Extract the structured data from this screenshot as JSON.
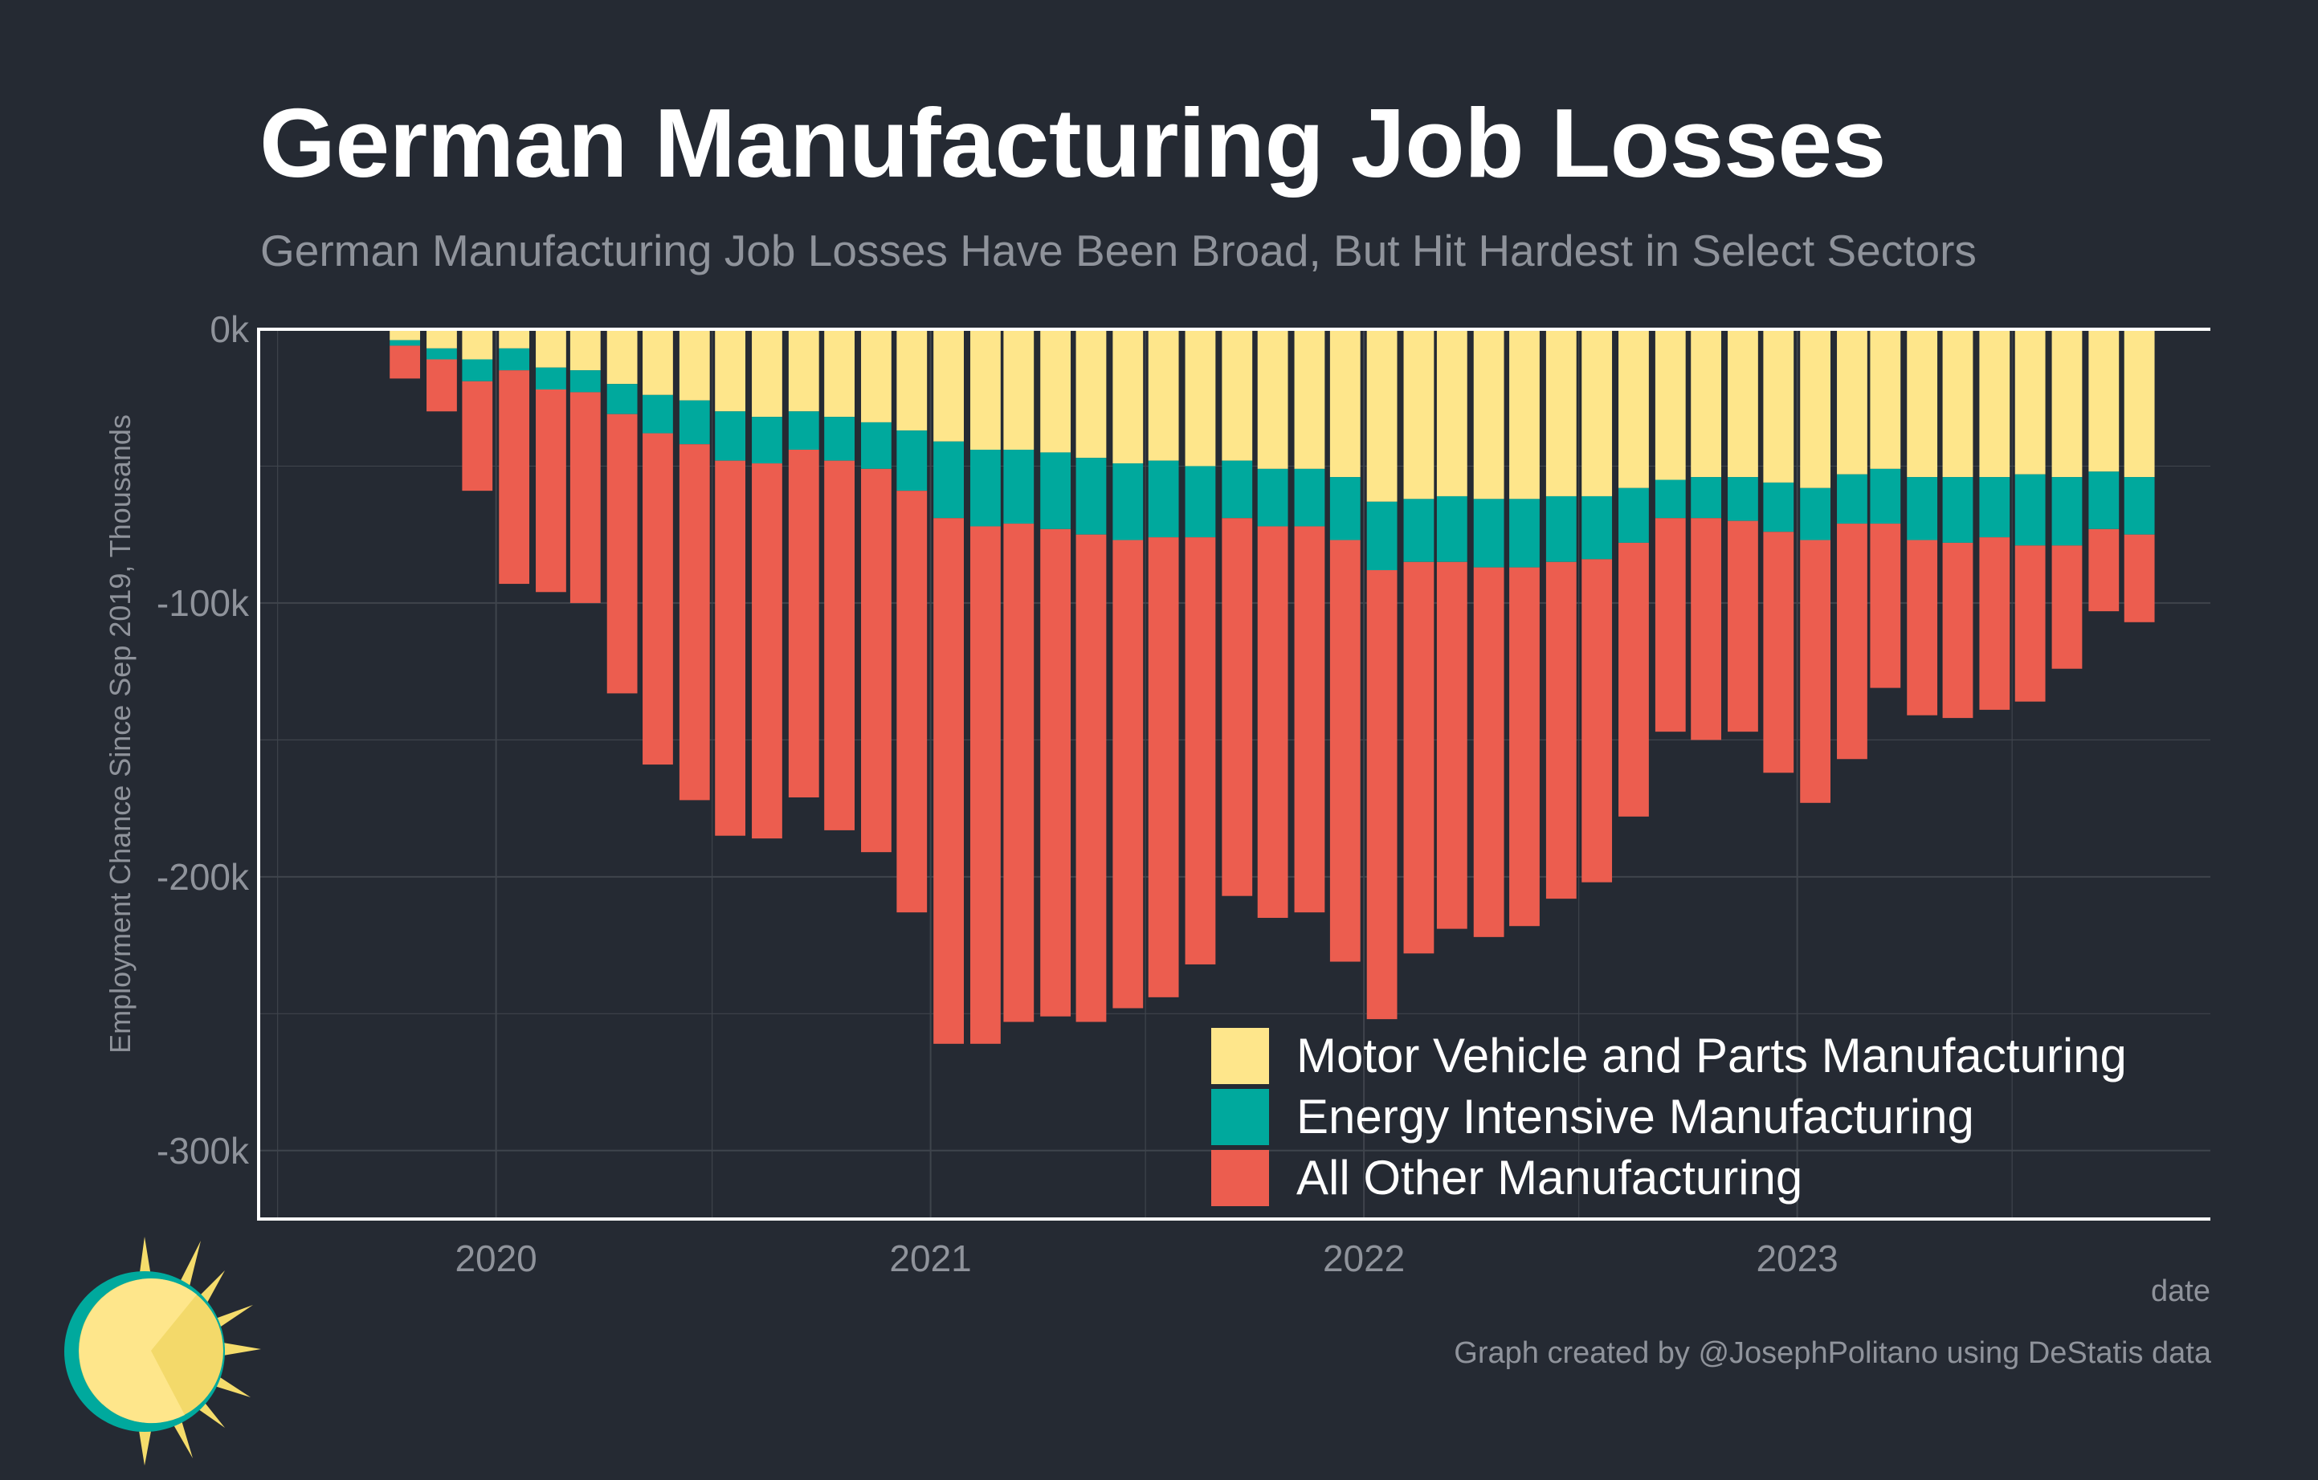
{
  "title": "German Manufacturing Job Losses",
  "subtitle": "German Manufacturing Job Losses Have Been Broad, But Hit Hardest in Select Sectors",
  "caption": "Graph created by @JosephPolitano using DeStatis data",
  "logo_icon": "sun-logo-icon",
  "colors": {
    "background": "#252a33",
    "motor": "#fee68b",
    "energy": "#00a99d",
    "other": "#ec5d4f",
    "grid": "#3f444c",
    "text_muted": "#8f939b"
  },
  "chart_data": {
    "type": "bar",
    "stacked": true,
    "title": "German Manufacturing Job Losses",
    "subtitle": "German Manufacturing Job Losses Have Been Broad, But Hit Hardest in Select Sectors",
    "xlabel": "date",
    "ylabel": "Employment Chance Since Sep 2019, Thousands",
    "ylim": [
      -325,
      0
    ],
    "yticks": [
      0,
      -100,
      -200,
      -300
    ],
    "ytick_labels": [
      "0k",
      "-100k",
      "-200k",
      "-300k"
    ],
    "xlim": [
      "2019-06-15",
      "2023-12-15"
    ],
    "xticks": [
      "2020-01",
      "2021-01",
      "2022-01",
      "2023-01"
    ],
    "xtick_labels": [
      "2020",
      "2021",
      "2022",
      "2023"
    ],
    "grid": true,
    "legend_position": "bottom-right",
    "months": [
      "2019-10",
      "2019-11",
      "2019-12",
      "2020-01",
      "2020-02",
      "2020-03",
      "2020-04",
      "2020-05",
      "2020-06",
      "2020-07",
      "2020-08",
      "2020-09",
      "2020-10",
      "2020-11",
      "2020-12",
      "2021-01",
      "2021-02",
      "2021-03",
      "2021-04",
      "2021-05",
      "2021-06",
      "2021-07",
      "2021-08",
      "2021-09",
      "2021-10",
      "2021-11",
      "2021-12",
      "2022-01",
      "2022-02",
      "2022-03",
      "2022-04",
      "2022-05",
      "2022-06",
      "2022-07",
      "2022-08",
      "2022-09",
      "2022-10",
      "2022-11",
      "2022-12",
      "2023-01",
      "2023-02",
      "2023-03",
      "2023-04",
      "2023-05",
      "2023-06",
      "2023-07",
      "2023-08",
      "2023-09",
      "2023-10"
    ],
    "series": [
      {
        "name": "Motor Vehicle and Parts Manufacturing",
        "color": "#fee68b",
        "values": [
          -4,
          -7,
          -11,
          -7,
          -14,
          -15,
          -20,
          -24,
          -26,
          -30,
          -32,
          -30,
          -32,
          -34,
          -37,
          -41,
          -44,
          -44,
          -45,
          -47,
          -49,
          -48,
          -50,
          -48,
          -51,
          -51,
          -54,
          -63,
          -62,
          -61,
          -62,
          -62,
          -61,
          -61,
          -58,
          -55,
          -54,
          -54,
          -56,
          -58,
          -53,
          -51,
          -54,
          -54,
          -54,
          -53,
          -54,
          -52,
          -54
        ]
      },
      {
        "name": "Energy Intensive Manufacturing",
        "color": "#00a99d",
        "values": [
          -2,
          -4,
          -8,
          -8,
          -8,
          -8,
          -11,
          -14,
          -16,
          -18,
          -17,
          -14,
          -16,
          -17,
          -22,
          -28,
          -28,
          -27,
          -28,
          -28,
          -28,
          -28,
          -26,
          -21,
          -21,
          -21,
          -23,
          -25,
          -23,
          -24,
          -25,
          -25,
          -24,
          -23,
          -20,
          -14,
          -15,
          -16,
          -18,
          -19,
          -18,
          -20,
          -23,
          -24,
          -22,
          -26,
          -25,
          -21,
          -21
        ]
      },
      {
        "name": "All Other Manufacturing",
        "color": "#ec5d4f",
        "values": [
          -12,
          -19,
          -40,
          -78,
          -74,
          -77,
          -102,
          -121,
          -130,
          -137,
          -137,
          -127,
          -135,
          -140,
          -154,
          -192,
          -189,
          -182,
          -178,
          -178,
          -171,
          -168,
          -156,
          -138,
          -143,
          -141,
          -154,
          -164,
          -143,
          -134,
          -135,
          -131,
          -123,
          -118,
          -100,
          -78,
          -81,
          -77,
          -88,
          -96,
          -86,
          -60,
          -64,
          -64,
          -63,
          -57,
          -45,
          -30,
          -32
        ]
      }
    ]
  }
}
